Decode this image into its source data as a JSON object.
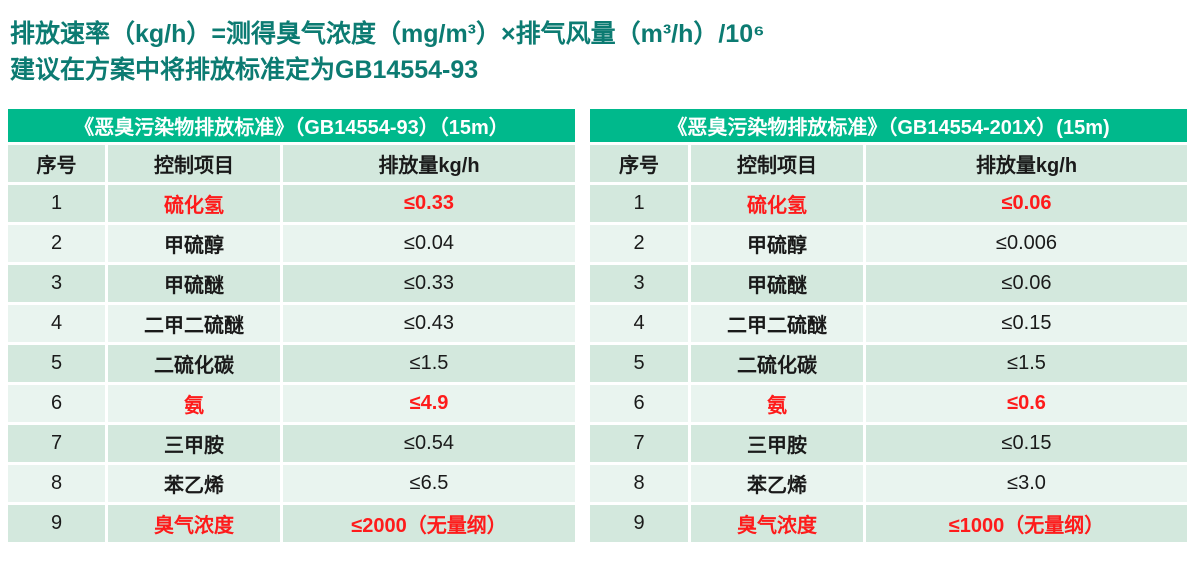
{
  "intro": {
    "line1": "排放速率（kg/h）=测得臭气浓度（mg/m³）×排气风量（m³/h）/10⁶",
    "line2": "建议在方案中将排放标准定为GB14554-93"
  },
  "tables": [
    {
      "title": "《恶臭污染物排放标准》（GB14554-93）（15m）",
      "columns": [
        "序号",
        "控制项目",
        "排放量kg/h"
      ],
      "rows": [
        {
          "no": "1",
          "item": "硫化氢",
          "value": "≤0.33",
          "highlight": true
        },
        {
          "no": "2",
          "item": "甲硫醇",
          "value": "≤0.04",
          "highlight": false
        },
        {
          "no": "3",
          "item": "甲硫醚",
          "value": "≤0.33",
          "highlight": false
        },
        {
          "no": "4",
          "item": "二甲二硫醚",
          "value": "≤0.43",
          "highlight": false
        },
        {
          "no": "5",
          "item": "二硫化碳",
          "value": "≤1.5",
          "highlight": false
        },
        {
          "no": "6",
          "item": "氨",
          "value": "≤4.9",
          "highlight": true
        },
        {
          "no": "7",
          "item": "三甲胺",
          "value": "≤0.54",
          "highlight": false
        },
        {
          "no": "8",
          "item": "苯乙烯",
          "value": "≤6.5",
          "highlight": false
        },
        {
          "no": "9",
          "item": "臭气浓度",
          "value": "≤2000（无量纲）",
          "highlight": true
        }
      ]
    },
    {
      "title": "《恶臭污染物排放标准》（GB14554-201X）(15m)",
      "columns": [
        "序号",
        "控制项目",
        "排放量kg/h"
      ],
      "rows": [
        {
          "no": "1",
          "item": "硫化氢",
          "value": "≤0.06",
          "highlight": true
        },
        {
          "no": "2",
          "item": "甲硫醇",
          "value": "≤0.006",
          "highlight": false
        },
        {
          "no": "3",
          "item": "甲硫醚",
          "value": "≤0.06",
          "highlight": false
        },
        {
          "no": "4",
          "item": "二甲二硫醚",
          "value": "≤0.15",
          "highlight": false
        },
        {
          "no": "5",
          "item": "二硫化碳",
          "value": "≤1.5",
          "highlight": false
        },
        {
          "no": "6",
          "item": "氨",
          "value": "≤0.6",
          "highlight": true
        },
        {
          "no": "7",
          "item": "三甲胺",
          "value": "≤0.15",
          "highlight": false
        },
        {
          "no": "8",
          "item": "苯乙烯",
          "value": "≤3.0",
          "highlight": false
        },
        {
          "no": "9",
          "item": "臭气浓度",
          "value": "≤1000（无量纲）",
          "highlight": true
        }
      ]
    }
  ],
  "colors": {
    "intro_text": "#0c7b72",
    "table_header_bg": "#00b98c",
    "table_header_text": "#ffffff",
    "row_light": "#e9f4ef",
    "row_dark": "#d3e8dd",
    "body_text": "#1a1a1a",
    "highlight_red": "#fe1b1b"
  }
}
